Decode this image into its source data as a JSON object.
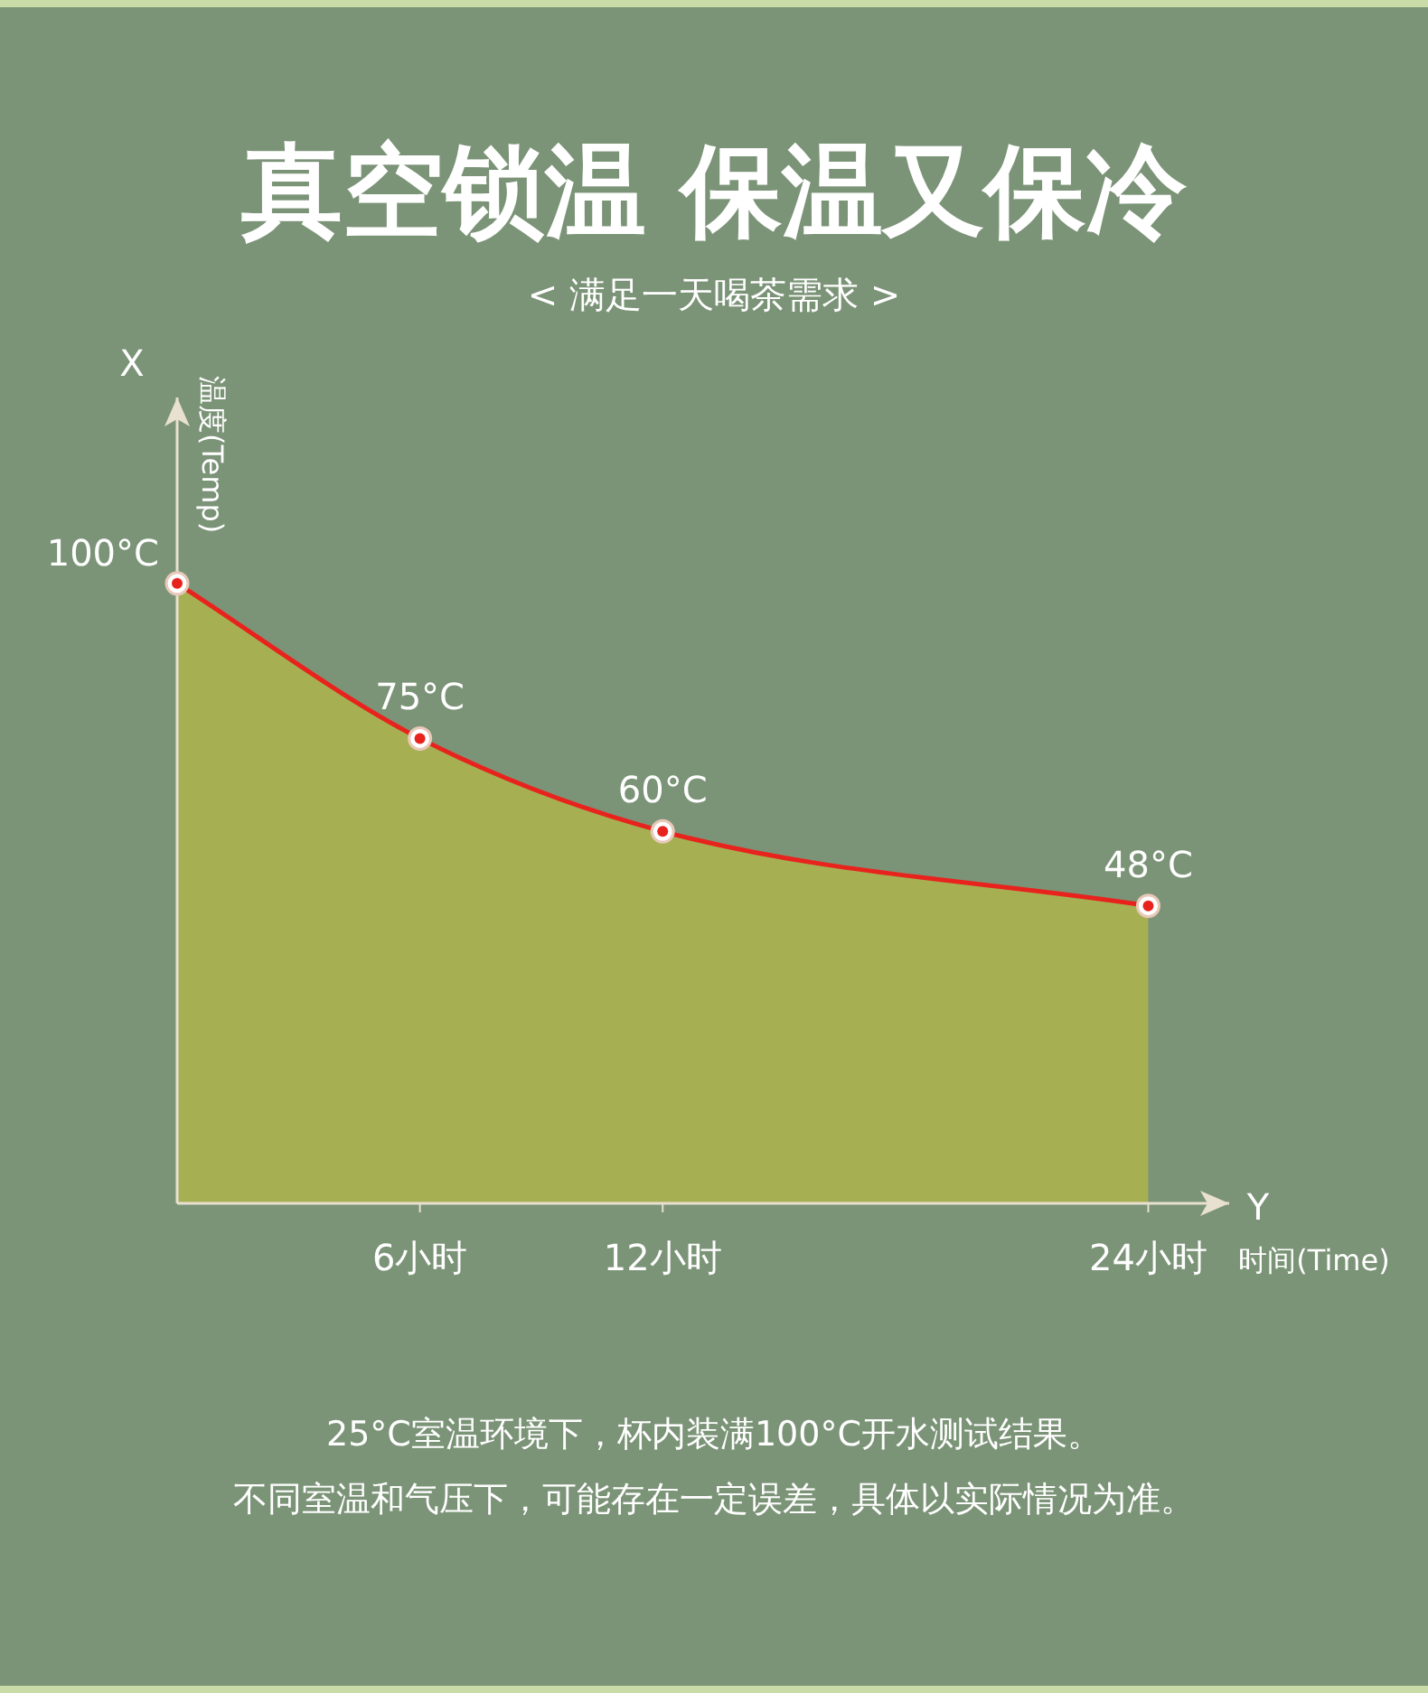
{
  "chart_data": {
    "type": "area",
    "title": "真空锁温 保温又保冷",
    "subtitle": "< 满足一天喝茶需求 >",
    "xlabel": "时间(Time)",
    "ylabel": "温度(Temp)",
    "x": [
      0,
      6,
      12,
      24
    ],
    "values": [
      100,
      75,
      60,
      48
    ],
    "value_labels": [
      "100°C",
      "75°C",
      "60°C",
      "48°C"
    ],
    "color": "#a6b053",
    "marker": "circle",
    "xlim": [
      0,
      26
    ],
    "xticks": [
      {
        "value": 6,
        "label": "6小时"
      },
      {
        "value": 12,
        "label": "12小时"
      },
      {
        "value": 24,
        "label": "24小时"
      }
    ],
    "annotations": [
      "X",
      "Y",
      "25°C室温环境下，杯内装满100°C开水测试结果。",
      "不同室温和气压下，可能存在一定误差，具体以实际情况为准。"
    ]
  }
}
